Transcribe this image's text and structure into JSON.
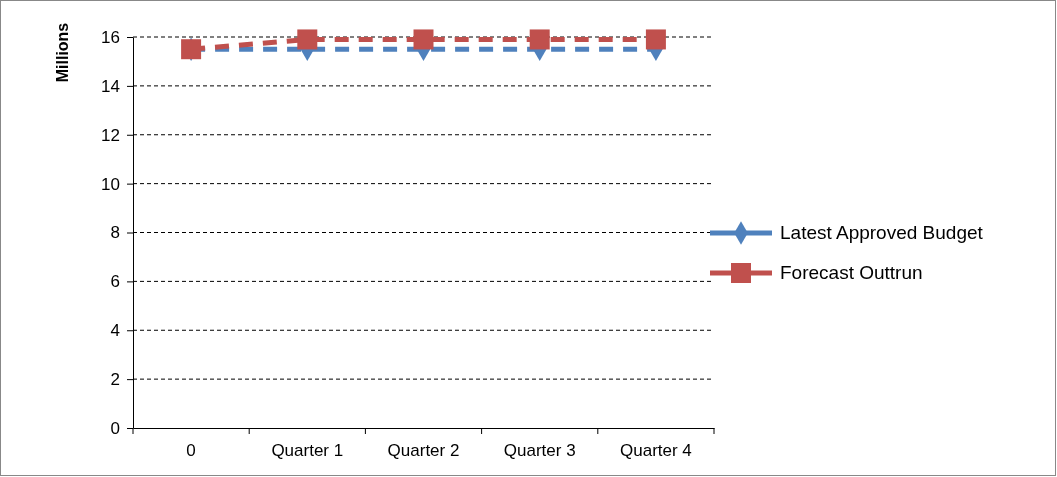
{
  "chart_data": {
    "type": "line",
    "ylabel": "Millions",
    "categories": [
      "0",
      "Quarter 1",
      "Quarter 2",
      "Quarter 3",
      "Quarter 4"
    ],
    "series": [
      {
        "name": "Latest Approved Budget",
        "color": "#4f81bd",
        "marker": "diamond",
        "values": [
          15.5,
          15.5,
          15.5,
          15.5,
          15.5
        ]
      },
      {
        "name": "Forecast Outtrun",
        "color": "#c0504d",
        "marker": "square",
        "values": [
          15.5,
          15.9,
          15.9,
          15.9,
          15.9
        ]
      }
    ],
    "ylim": [
      0,
      16
    ],
    "yticks": [
      0,
      2,
      4,
      6,
      8,
      10,
      12,
      14,
      16
    ],
    "grid": "y",
    "legend": "right",
    "line_style": "dashed"
  }
}
